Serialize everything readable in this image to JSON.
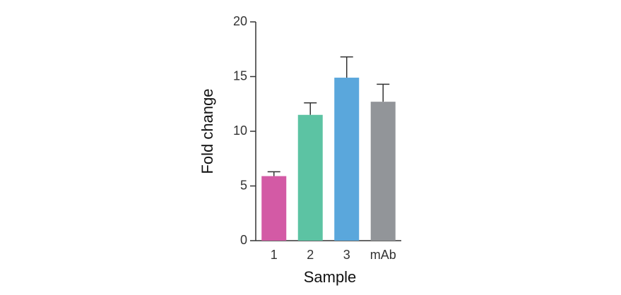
{
  "chart_data": {
    "type": "bar",
    "xlabel": "Sample",
    "ylabel": "Fold change",
    "categories": [
      "1",
      "2",
      "3",
      "mAb"
    ],
    "values": [
      5.9,
      11.5,
      14.9,
      12.7
    ],
    "errors": [
      0.4,
      1.1,
      1.9,
      1.6
    ],
    "colors": [
      "#d35aa5",
      "#5cc3a3",
      "#5aa7dc",
      "#929599"
    ],
    "ylim": [
      0,
      20
    ],
    "yticks": [
      0,
      5,
      10,
      15,
      20
    ]
  }
}
